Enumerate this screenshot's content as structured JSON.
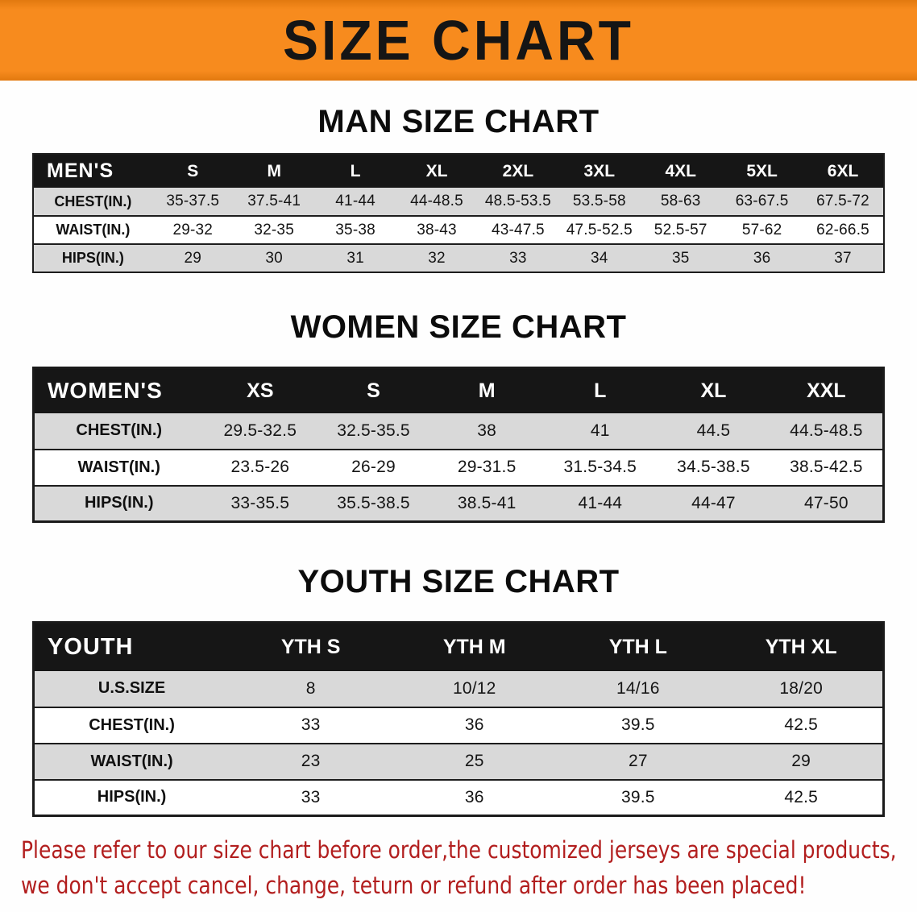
{
  "banner": {
    "title": "SIZE CHART"
  },
  "theme": {
    "banner_orange": "#f78b1e",
    "banner_orange_dark": "#e2790f",
    "header_black": "#161616",
    "row_gray": "#d9d9d9",
    "notice_red": "#b21e1e"
  },
  "sections": [
    {
      "heading": "MAN SIZE CHART",
      "table": {
        "corner": "MEN'S",
        "columns": [
          "S",
          "M",
          "L",
          "XL",
          "2XL",
          "3XL",
          "4XL",
          "5XL",
          "6XL"
        ],
        "rows": [
          {
            "label": "CHEST(IN.)",
            "values": [
              "35-37.5",
              "37.5-41",
              "41-44",
              "44-48.5",
              "48.5-53.5",
              "53.5-58",
              "58-63",
              "63-67.5",
              "67.5-72"
            ]
          },
          {
            "label": "WAIST(IN.)",
            "values": [
              "29-32",
              "32-35",
              "35-38",
              "38-43",
              "43-47.5",
              "47.5-52.5",
              "52.5-57",
              "57-62",
              "62-66.5"
            ]
          },
          {
            "label": "HIPS(IN.)",
            "values": [
              "29",
              "30",
              "31",
              "32",
              "33",
              "34",
              "35",
              "36",
              "37"
            ]
          }
        ]
      }
    },
    {
      "heading": "WOMEN SIZE CHART",
      "table": {
        "corner": "WOMEN'S",
        "columns": [
          "XS",
          "S",
          "M",
          "L",
          "XL",
          "XXL"
        ],
        "rows": [
          {
            "label": "CHEST(IN.)",
            "values": [
              "29.5-32.5",
              "32.5-35.5",
              "38",
              "41",
              "44.5",
              "44.5-48.5"
            ]
          },
          {
            "label": "WAIST(IN.)",
            "values": [
              "23.5-26",
              "26-29",
              "29-31.5",
              "31.5-34.5",
              "34.5-38.5",
              "38.5-42.5"
            ]
          },
          {
            "label": "HIPS(IN.)",
            "values": [
              "33-35.5",
              "35.5-38.5",
              "38.5-41",
              "41-44",
              "44-47",
              "47-50"
            ]
          }
        ]
      }
    },
    {
      "heading": "YOUTH SIZE CHART",
      "table": {
        "corner": "YOUTH",
        "columns": [
          "YTH S",
          "YTH M",
          "YTH L",
          "YTH XL"
        ],
        "rows": [
          {
            "label": "U.S.SIZE",
            "values": [
              "8",
              "10/12",
              "14/16",
              "18/20"
            ]
          },
          {
            "label": "CHEST(IN.)",
            "values": [
              "33",
              "36",
              "39.5",
              "42.5"
            ]
          },
          {
            "label": "WAIST(IN.)",
            "values": [
              "23",
              "25",
              "27",
              "29"
            ]
          },
          {
            "label": "HIPS(IN.)",
            "values": [
              "33",
              "36",
              "39.5",
              "42.5"
            ]
          }
        ]
      }
    }
  ],
  "footer": {
    "line1": "Please refer to our size chart before order,the customized jerseys are special products,",
    "line2": "we don't accept cancel, change, teturn or refund after order has been placed!"
  }
}
